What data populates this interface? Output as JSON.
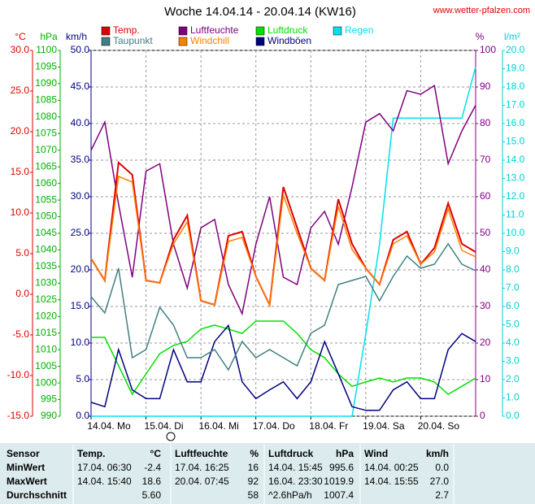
{
  "chart_data": {
    "type": "line",
    "title": "Woche 14.04.14 - 20.04.14 (KW16)",
    "source": "www.wetter-pfalzen.com",
    "x": [
      0,
      6,
      12,
      18,
      24,
      30,
      36,
      42,
      48,
      54,
      60,
      66,
      72,
      78,
      84,
      90,
      96,
      102,
      108,
      114,
      120,
      126,
      132,
      138,
      144,
      150,
      156,
      162,
      168
    ],
    "xlim": [
      0,
      168
    ],
    "xticks": [
      {
        "value": 0,
        "label": "14.04. Mo"
      },
      {
        "value": 24,
        "label": "15.04. Di"
      },
      {
        "value": 48,
        "label": "16.04. Mi"
      },
      {
        "value": 72,
        "label": "17.04. Do"
      },
      {
        "value": 96,
        "label": "18.04. Fr"
      },
      {
        "value": 120,
        "label": "19.04. Sa"
      },
      {
        "value": 144,
        "label": "20.04. So"
      }
    ],
    "grid": true,
    "grid_axis": "wind",
    "axes": {
      "temp": {
        "unit": "°C",
        "color": "#e00000",
        "lim": [
          -15,
          30
        ],
        "ticks": [
          {
            "value": -15,
            "label": "-15.0"
          },
          {
            "value": -10,
            "label": "-10.0"
          },
          {
            "value": -5,
            "label": "-5.0"
          },
          {
            "value": 0,
            "label": "0.0"
          },
          {
            "value": 5,
            "label": "5.0"
          },
          {
            "value": 10,
            "label": "10.0"
          },
          {
            "value": 15,
            "label": "15.0"
          },
          {
            "value": 20,
            "label": "20.0"
          },
          {
            "value": 25,
            "label": "25.0"
          },
          {
            "value": 30,
            "label": "30.0"
          }
        ]
      },
      "pressure": {
        "unit": "hPa",
        "color": "#00b000",
        "lim": [
          990,
          1100
        ],
        "ticks": [
          990,
          995,
          1000,
          1005,
          1010,
          1015,
          1020,
          1025,
          1030,
          1035,
          1040,
          1045,
          1050,
          1055,
          1060,
          1065,
          1070,
          1075,
          1080,
          1085,
          1090,
          1095,
          1100
        ]
      },
      "wind": {
        "unit": "km/h",
        "color": "#000080",
        "lim": [
          0,
          50
        ],
        "ticks": [
          {
            "value": 0,
            "label": "0.0"
          },
          {
            "value": 5,
            "label": "5.0"
          },
          {
            "value": 10,
            "label": "10.0"
          },
          {
            "value": 15,
            "label": "15.0"
          },
          {
            "value": 20,
            "label": "20.0"
          },
          {
            "value": 25,
            "label": "25.0"
          },
          {
            "value": 30,
            "label": "30.0"
          },
          {
            "value": 35,
            "label": "35.0"
          },
          {
            "value": 40,
            "label": "40.0"
          },
          {
            "value": 45,
            "label": "45.0"
          },
          {
            "value": 50,
            "label": "50.0"
          }
        ]
      },
      "humidity": {
        "unit": "%",
        "color": "#800080",
        "lim": [
          0,
          100
        ],
        "ticks": [
          0,
          10,
          20,
          30,
          40,
          50,
          60,
          70,
          80,
          90,
          100
        ]
      },
      "rain": {
        "unit": "l/m²",
        "color": "#00d0d0",
        "lim": [
          0,
          20
        ],
        "ticks": [
          {
            "value": 0,
            "label": "0.0"
          },
          {
            "value": 1,
            "label": "1.0"
          },
          {
            "value": 2,
            "label": "2.0"
          },
          {
            "value": 3,
            "label": "3.0"
          },
          {
            "value": 4,
            "label": "4.0"
          },
          {
            "value": 5,
            "label": "5.0"
          },
          {
            "value": 6,
            "label": "6.0"
          },
          {
            "value": 7,
            "label": "7.0"
          },
          {
            "value": 8,
            "label": "8.0"
          },
          {
            "value": 9,
            "label": "9.0"
          },
          {
            "value": 10,
            "label": "10.0"
          },
          {
            "value": 11,
            "label": "11.0"
          },
          {
            "value": 12,
            "label": "12.0"
          },
          {
            "value": 13,
            "label": "13.0"
          },
          {
            "value": 14,
            "label": "14.0"
          },
          {
            "value": 15,
            "label": "15.0"
          },
          {
            "value": 16,
            "label": "16.0"
          },
          {
            "value": 17,
            "label": "17.0"
          },
          {
            "value": 18,
            "label": "18.0"
          },
          {
            "value": 19,
            "label": "19.0"
          },
          {
            "value": 20,
            "label": "20.0"
          }
        ]
      }
    },
    "series": [
      {
        "name": "Temp.",
        "color": "#e00000",
        "axis": "temp",
        "values": [
          4.4,
          1.7,
          16.2,
          14.7,
          1.7,
          1.4,
          6.7,
          9.7,
          -0.8,
          -1.3,
          7.2,
          7.7,
          2.2,
          -1.3,
          13.2,
          8.2,
          3.2,
          1.7,
          11.7,
          6.2,
          3.2,
          1.2,
          6.7,
          7.7,
          3.7,
          5.7,
          11.2,
          6.2,
          5.2
        ]
      },
      {
        "name": "Luftfeuchte",
        "color": "#800080",
        "axis": "humidity",
        "values": [
          72.7,
          80.4,
          58,
          38,
          67,
          69,
          47,
          35,
          51.5,
          53.8,
          36,
          28,
          47,
          60,
          38,
          36,
          51.5,
          56,
          47,
          62.7,
          80.4,
          82.7,
          78,
          89,
          88,
          90.4,
          69,
          78,
          85
        ]
      },
      {
        "name": "Luftdruck",
        "color": "#00e000",
        "axis": "pressure",
        "values": [
          1013.7,
          1013.7,
          1005.2,
          996.6,
          1002.7,
          1008.8,
          1011.3,
          1012.5,
          1016.2,
          1017.4,
          1016.2,
          1014.9,
          1018.6,
          1018.6,
          1018.6,
          1014.9,
          1010,
          1007.6,
          1002.7,
          999,
          1000.3,
          1001.5,
          1000.3,
          1001.5,
          1001.5,
          1000.3,
          996.6,
          999,
          1001.5
        ]
      },
      {
        "name": "Regen",
        "color": "#00e0f0",
        "axis": "rain",
        "values": [
          0,
          0,
          0,
          0,
          0,
          0,
          0,
          0,
          0,
          0,
          0,
          0,
          0,
          0,
          0,
          0,
          0,
          0,
          0,
          0,
          4.5,
          9.4,
          16.3,
          16.3,
          16.3,
          16.3,
          16.3,
          16.3,
          19.1
        ]
      },
      {
        "name": "Taupunkt",
        "color": "#408080",
        "axis": "temp",
        "values": [
          -0.3,
          -2.3,
          3.2,
          -7.8,
          -6.8,
          -1.6,
          -3.8,
          -7.8,
          -7.8,
          -6.8,
          -9.3,
          -5.8,
          -7.8,
          -6.8,
          -7.8,
          -8.8,
          -4.8,
          -3.8,
          1.2,
          1.7,
          2.2,
          -0.8,
          2.2,
          4.7,
          3.2,
          3.7,
          6.2,
          3.7,
          2.9
        ]
      },
      {
        "name": "Windchill",
        "color": "#ff8000",
        "axis": "temp",
        "values": [
          4.4,
          1.7,
          14.5,
          13.8,
          1.7,
          1.4,
          6.2,
          8.9,
          -0.8,
          -1.3,
          6.5,
          7.0,
          2.2,
          -1.3,
          12.2,
          7.5,
          3.2,
          1.7,
          10.8,
          5.5,
          3.2,
          1.2,
          6.2,
          7.2,
          3.7,
          5.2,
          10.5,
          5.4,
          4.6
        ]
      },
      {
        "name": "Windböen",
        "color": "#000080",
        "axis": "wind",
        "values": [
          1.9,
          1.3,
          9.1,
          3.6,
          2.4,
          2.4,
          9.1,
          4.7,
          4.7,
          10.2,
          12.4,
          4.7,
          2.4,
          3.6,
          4.7,
          2.4,
          4.7,
          10.2,
          5.8,
          1.3,
          0.8,
          0.8,
          3.6,
          4.7,
          2.4,
          2.4,
          9.1,
          11.3,
          10.2
        ]
      }
    ]
  },
  "table": {
    "header": [
      "Sensor",
      "Temp.",
      "°C",
      "Luftfeuchte",
      "%",
      "Luftdruck",
      "hPa",
      "Wind",
      "km/h"
    ],
    "rows": [
      {
        "label": "MinWert",
        "cells": [
          "17.04.  06:30",
          "-2.4",
          "17.04.  16:25",
          "16",
          "14.04.  15:45",
          "995.6",
          "14.04.  00:25",
          "0.0"
        ]
      },
      {
        "label": "MaxWert",
        "cells": [
          "14.04.  15:40",
          "18.6",
          "20.04.  07:45",
          "92",
          "16.04.  23:30",
          "1019.9",
          "14.04.  15:55",
          "27.0"
        ]
      },
      {
        "label": "Durchschnitt",
        "cells": [
          null,
          "5.60",
          null,
          "58",
          "^2.6hPa/h",
          "1007.4",
          null,
          "2.7"
        ]
      }
    ]
  }
}
